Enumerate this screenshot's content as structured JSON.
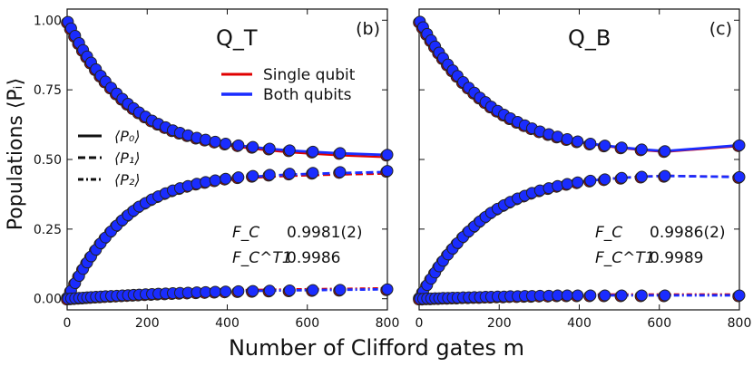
{
  "figure": {
    "ylabel": "Populations ⟨Pᵢ⟩",
    "xlabel": "Number of Clifford gates m",
    "legend": {
      "single": "Single qubit",
      "both": "Both qubits",
      "p0": "⟨P₀⟩",
      "p1": "⟨P₁⟩",
      "p2": "⟨P₂⟩"
    },
    "colors": {
      "single": "#e00000",
      "both": "#1a2cff",
      "marker_edge": "#222222"
    }
  },
  "chart_data": [
    {
      "type": "scatter",
      "panel": "(b)",
      "title": "Q_T",
      "xlim": [
        0,
        800
      ],
      "ylim": [
        -0.04,
        1.04
      ],
      "xticks": [
        "0",
        "200",
        "400",
        "600",
        "800"
      ],
      "yticks": [
        "0.00",
        "0.25",
        "0.50",
        "0.75",
        "1.00"
      ],
      "x": [
        2,
        10,
        20,
        30,
        40,
        50,
        60,
        72,
        84,
        96,
        110,
        124,
        138,
        152,
        166,
        180,
        196,
        212,
        228,
        246,
        264,
        282,
        302,
        324,
        346,
        370,
        396,
        428,
        464,
        506,
        556,
        614,
        682,
        800
      ],
      "series": [
        {
          "name": "⟨P₀⟩ both",
          "values": [
            0.994,
            0.971,
            0.944,
            0.918,
            0.893,
            0.87,
            0.848,
            0.824,
            0.801,
            0.78,
            0.758,
            0.737,
            0.718,
            0.7,
            0.684,
            0.669,
            0.654,
            0.64,
            0.628,
            0.616,
            0.605,
            0.596,
            0.587,
            0.578,
            0.571,
            0.564,
            0.557,
            0.551,
            0.545,
            0.539,
            0.533,
            0.528,
            0.523,
            0.517
          ]
        },
        {
          "name": "⟨P₁⟩ both",
          "values": [
            0.006,
            0.029,
            0.056,
            0.082,
            0.107,
            0.13,
            0.152,
            0.176,
            0.199,
            0.22,
            0.242,
            0.263,
            0.282,
            0.3,
            0.316,
            0.331,
            0.344,
            0.357,
            0.368,
            0.379,
            0.389,
            0.397,
            0.405,
            0.413,
            0.419,
            0.425,
            0.431,
            0.436,
            0.441,
            0.445,
            0.449,
            0.452,
            0.455,
            0.459
          ]
        },
        {
          "name": "⟨P₂⟩ both",
          "values": [
            0.0,
            0.001,
            0.002,
            0.003,
            0.004,
            0.005,
            0.006,
            0.007,
            0.008,
            0.009,
            0.01,
            0.011,
            0.012,
            0.013,
            0.014,
            0.015,
            0.016,
            0.017,
            0.018,
            0.019,
            0.02,
            0.021,
            0.022,
            0.023,
            0.024,
            0.025,
            0.026,
            0.027,
            0.028,
            0.029,
            0.03,
            0.031,
            0.032,
            0.034
          ]
        }
      ],
      "fit_lines": {
        "single_p0_end": 0.508,
        "single_p1_end": 0.449,
        "both_p0_end": 0.516,
        "both_p1_end": 0.455,
        "p2_end": 0.034
      },
      "annotations": {
        "fc_label": "F_C",
        "fc_value": "0.9981(2)",
        "fct1_label": "F_C^T1",
        "fct1_value": "0.9986"
      }
    },
    {
      "type": "scatter",
      "panel": "(c)",
      "title": "Q_B",
      "xlim": [
        0,
        800
      ],
      "ylim": [
        -0.04,
        1.04
      ],
      "xticks": [
        "0",
        "200",
        "400",
        "600",
        "800"
      ],
      "yticks": [
        "0.00",
        "0.25",
        "0.50",
        "0.75",
        "1.00"
      ],
      "x": [
        2,
        10,
        20,
        30,
        40,
        50,
        60,
        72,
        84,
        96,
        110,
        124,
        138,
        152,
        166,
        180,
        196,
        212,
        228,
        246,
        264,
        282,
        302,
        324,
        346,
        370,
        396,
        428,
        464,
        506,
        556,
        614,
        800
      ],
      "series": [
        {
          "name": "⟨P₀⟩ both",
          "values": [
            0.995,
            0.975,
            0.951,
            0.928,
            0.906,
            0.884,
            0.864,
            0.841,
            0.82,
            0.8,
            0.778,
            0.758,
            0.74,
            0.722,
            0.706,
            0.69,
            0.675,
            0.661,
            0.648,
            0.635,
            0.623,
            0.612,
            0.601,
            0.591,
            0.582,
            0.573,
            0.565,
            0.557,
            0.55,
            0.543,
            0.536,
            0.53,
            0.551
          ]
        },
        {
          "name": "⟨P₁⟩ both",
          "values": [
            0.005,
            0.025,
            0.049,
            0.072,
            0.094,
            0.116,
            0.136,
            0.159,
            0.18,
            0.2,
            0.222,
            0.242,
            0.26,
            0.278,
            0.294,
            0.309,
            0.323,
            0.336,
            0.348,
            0.36,
            0.37,
            0.38,
            0.389,
            0.397,
            0.405,
            0.412,
            0.418,
            0.424,
            0.429,
            0.434,
            0.438,
            0.441,
            0.437
          ]
        },
        {
          "name": "⟨P₂⟩ both",
          "values": [
            0.0,
            0.0,
            0.001,
            0.001,
            0.002,
            0.002,
            0.003,
            0.003,
            0.004,
            0.004,
            0.005,
            0.005,
            0.006,
            0.006,
            0.007,
            0.007,
            0.008,
            0.008,
            0.009,
            0.009,
            0.01,
            0.01,
            0.011,
            0.011,
            0.012,
            0.012,
            0.012,
            0.012,
            0.012,
            0.012,
            0.012,
            0.012,
            0.012
          ]
        }
      ],
      "fit_lines": {
        "single_p0_end": 0.548,
        "single_p1_end": 0.438,
        "both_p0_end": 0.551,
        "both_p1_end": 0.437,
        "p2_end": 0.012
      },
      "annotations": {
        "fc_label": "F_C",
        "fc_value": "0.9986(2)",
        "fct1_label": "F_C^T1",
        "fct1_value": "0.9989"
      }
    }
  ]
}
